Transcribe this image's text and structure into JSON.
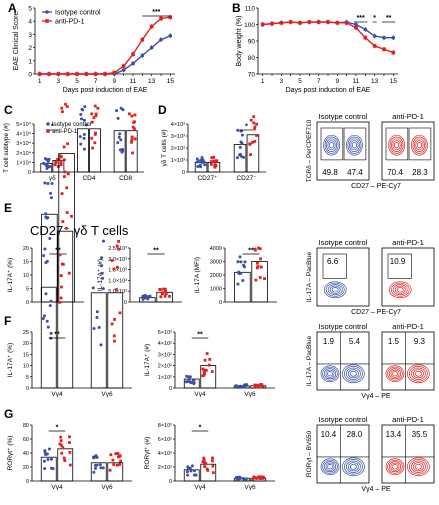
{
  "colors": {
    "ctrl": "#3a4fa6",
    "pd1": "#dd2222"
  },
  "panel_letters": [
    "A",
    "B",
    "C",
    "D",
    "E",
    "F",
    "G"
  ],
  "subtitle": "CD27⁻ γδ T cells",
  "chart_data": [
    {
      "id": "A",
      "type": "line",
      "xlabel": "Days post induction of EAE",
      "ylabel": "EAE Clinical Score",
      "x": [
        1,
        2,
        3,
        4,
        5,
        6,
        7,
        8,
        9,
        10,
        11,
        12,
        13,
        14,
        15
      ],
      "ylim": [
        0,
        5
      ],
      "yticks": [
        0,
        1,
        2,
        3,
        4,
        5
      ],
      "legend": [
        "Isotype control",
        "anti-PD-1"
      ],
      "sig": "***",
      "series": [
        {
          "name": "Isotype control",
          "values": [
            0,
            0,
            0,
            0,
            0,
            0,
            0,
            0,
            0,
            0.3,
            0.8,
            1.4,
            2.0,
            2.6,
            2.9
          ]
        },
        {
          "name": "anti-PD-1",
          "values": [
            0,
            0,
            0,
            0,
            0,
            0,
            0,
            0,
            0.1,
            0.6,
            1.5,
            2.6,
            3.6,
            4.2,
            4.3
          ]
        }
      ]
    },
    {
      "id": "B",
      "type": "line",
      "xlabel": "Days post induction of EAE",
      "ylabel": "Body weight (%)",
      "x": [
        1,
        2,
        3,
        4,
        5,
        6,
        7,
        8,
        9,
        10,
        11,
        12,
        13,
        14,
        15
      ],
      "ylim": [
        70,
        110
      ],
      "yticks": [
        70,
        80,
        90,
        100,
        110
      ],
      "sigs": [
        "***",
        "*",
        "**"
      ],
      "series": [
        {
          "name": "Isotype control",
          "values": [
            100,
            100.5,
            101,
            101.5,
            101,
            101.5,
            101.5,
            101.5,
            101,
            101.5,
            100,
            97,
            93,
            92,
            92
          ]
        },
        {
          "name": "anti-PD-1",
          "values": [
            100,
            100.5,
            101,
            101.5,
            101,
            101.5,
            101.5,
            101.5,
            101,
            101,
            98,
            92,
            87,
            85,
            83
          ]
        }
      ]
    },
    {
      "id": "C",
      "type": "bar",
      "ylabel": "T cell subtype (#)",
      "categories": [
        "γδ",
        "CD4",
        "CD8"
      ],
      "yticks": [
        "0",
        "1×10⁴",
        "2×10⁴",
        "3×10⁴",
        "4×10⁴",
        "5×10⁴"
      ],
      "legend": [
        "Isotype control",
        "anti-PD-1"
      ],
      "sig": "*",
      "values_ctrl": [
        0.9,
        4.5,
        4.3
      ],
      "values_pd1": [
        1.2,
        4.5,
        4.3
      ]
    },
    {
      "id": "D",
      "type": "bar",
      "ylabel": "γδ T cells (#)",
      "categories": [
        "CD27⁺",
        "CD27⁻"
      ],
      "yticks": [
        "0",
        "1×10³",
        "2×10³",
        "3×10³",
        "4×10³"
      ],
      "sig": "*",
      "values_ctrl": [
        0.8,
        2.3
      ],
      "values_pd1": [
        0.8,
        3.1
      ]
    },
    {
      "id": "E1",
      "type": "bar",
      "ylabel": "IL-17A⁺ (%)",
      "yticks": [
        "0",
        "5",
        "10",
        "15",
        "20"
      ],
      "sig": "**",
      "values_ctrl": [
        6.5
      ],
      "values_pd1": [
        11
      ]
    },
    {
      "id": "E2",
      "type": "bar",
      "ylabel": "IL-17A⁺ (#)",
      "yticks": [
        "0",
        "5.0×10²",
        "1.0×10³",
        "1.5×10³",
        "2.0×10³",
        "2.5×10³"
      ],
      "sig": "**",
      "values_ctrl": [
        0.4
      ],
      "values_pd1": [
        0.9
      ]
    },
    {
      "id": "E3",
      "type": "bar",
      "ylabel": "IL-17A (MFI)",
      "yticks": [
        "0",
        "1000",
        "2000",
        "3000",
        "4000"
      ],
      "sig": "**",
      "values_ctrl": [
        2.2
      ],
      "values_pd1": [
        3.0
      ]
    },
    {
      "id": "F1",
      "type": "bar",
      "ylabel": "IL-17A⁺ (%)",
      "categories": [
        "Vγ4",
        "Vγ6"
      ],
      "yticks": [
        "0",
        "5",
        "10",
        "15",
        "20",
        "25"
      ],
      "sig": "**",
      "values_ctrl": [
        9,
        8.5
      ],
      "values_pd1": [
        14,
        8.5
      ]
    },
    {
      "id": "F2",
      "type": "bar",
      "ylabel": "IL-17A⁺ (#)",
      "categories": [
        "Vγ4",
        "Vγ6"
      ],
      "yticks": [
        "0",
        "1×10²",
        "2×10²",
        "3×10²",
        "4×10²",
        "5×10²"
      ],
      "sig": "**",
      "values_ctrl": [
        0.8,
        0.2
      ],
      "values_pd1": [
        2.0,
        0.2
      ]
    },
    {
      "id": "G1",
      "type": "bar",
      "ylabel": "RORγt⁺ (%)",
      "categories": [
        "Vγ4",
        "Vγ6"
      ],
      "yticks": [
        "0",
        "20",
        "40",
        "60",
        "80"
      ],
      "sig": "*",
      "values_ctrl": [
        1.7,
        1.3
      ],
      "values_pd1": [
        2.3,
        1.3
      ]
    },
    {
      "id": "G2",
      "type": "bar",
      "ylabel": "RORγt⁺ (#)",
      "categories": [
        "Vγ4",
        "Vγ6"
      ],
      "yticks": [
        "0",
        "2×10²",
        "4×10²",
        "6×10²",
        "8×10²"
      ],
      "sig": "*",
      "values_ctrl": [
        0.8,
        0.2
      ],
      "values_pd1": [
        1.2,
        0.2
      ]
    }
  ],
  "flow": [
    {
      "id": "C",
      "ylabel": "TCRδ – PerCPEF710",
      "xlabel": "CD27 – PE-Cy7",
      "titles": [
        "Isotype control",
        "anti-PD-1"
      ],
      "nums": [
        [
          "49.8",
          "47.4"
        ],
        [
          "70.4",
          "28.3"
        ]
      ]
    },
    {
      "id": "E",
      "ylabel": "IL-17A – PacBlue",
      "xlabel": "CD27 – PE-Cy7",
      "titles": [
        "Isotype control",
        "anti-PD-1"
      ],
      "nums": [
        [
          "6.6"
        ],
        [
          "10.9"
        ]
      ]
    },
    {
      "id": "F",
      "ylabel": "IL-17A – PacBlue",
      "xlabel": "Vγ4 – PE",
      "titles": [
        "Isotype control",
        "anti-PD-1"
      ],
      "nums": [
        [
          "1.9",
          "5.4"
        ],
        [
          "1.5",
          "9.3"
        ]
      ]
    },
    {
      "id": "G",
      "ylabel": "RORγt – BV650",
      "xlabel": "Vγ4 – PE",
      "titles": [
        "Isotype control",
        "anti-PD-1"
      ],
      "nums": [
        [
          "10.4",
          "28.0"
        ],
        [
          "13.4",
          "35.5"
        ]
      ]
    }
  ]
}
